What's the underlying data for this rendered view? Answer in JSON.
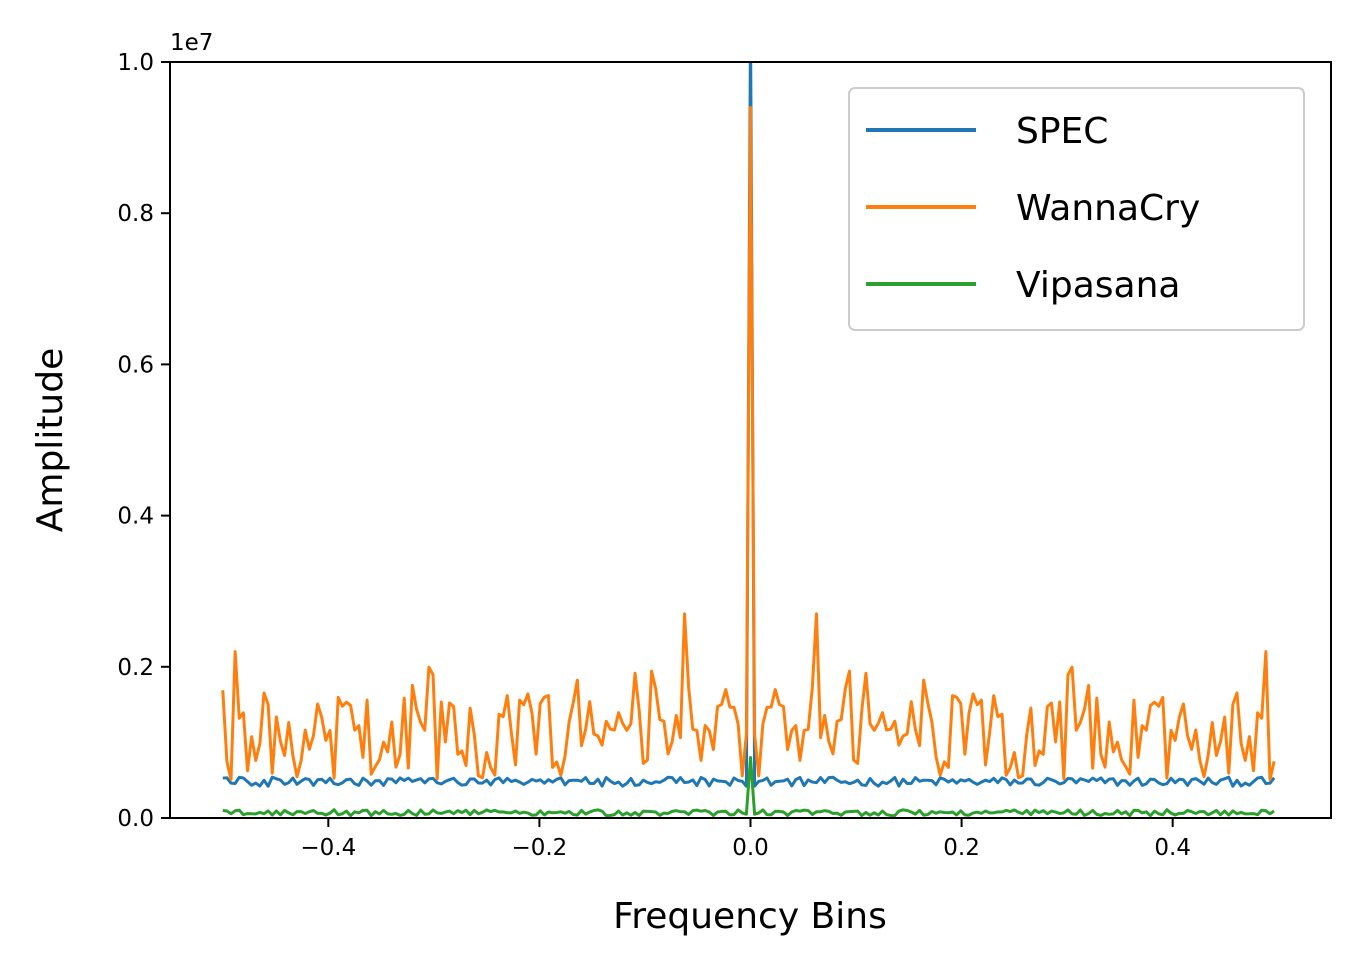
{
  "chart_data": {
    "type": "line",
    "title": "",
    "xlabel": "Frequency Bins",
    "ylabel": "Amplitude",
    "offset_label": "1e7",
    "xlim": [
      -0.55,
      0.55
    ],
    "ylim": [
      0,
      1.0
    ],
    "y_scale": 10000000,
    "x_ticks": [
      -0.4,
      -0.2,
      0.0,
      0.2,
      0.4
    ],
    "x_tick_labels": [
      "−0.4",
      "−0.2",
      "0.0",
      "0.2",
      "0.4"
    ],
    "y_ticks": [
      0.0,
      0.2,
      0.4,
      0.6,
      0.8,
      1.0
    ],
    "y_tick_labels": [
      "0.0",
      "0.2",
      "0.4",
      "0.6",
      "0.8",
      "1.0"
    ],
    "grid": false,
    "legend_position": "top-right",
    "x_range": [
      -0.5,
      0.5
    ],
    "series": [
      {
        "name": "SPEC",
        "color": "#1f77b4",
        "base_level": 0.048,
        "variation": 0.006,
        "peak_at_zero": 1.05
      },
      {
        "name": "WannaCry",
        "color": "#ff7f0e",
        "base_level": 0.11,
        "variation": 0.06,
        "peak_at_zero": 0.94,
        "notable_peaks": [
          {
            "x": -0.488,
            "y": 0.22
          },
          {
            "x": -0.062,
            "y": 0.27
          },
          {
            "x": 0.062,
            "y": 0.27
          },
          {
            "x": 0.488,
            "y": 0.22
          }
        ]
      },
      {
        "name": "Vipasana",
        "color": "#2ca02c",
        "base_level": 0.007,
        "variation": 0.004,
        "peak_at_zero": 0.08
      }
    ]
  }
}
